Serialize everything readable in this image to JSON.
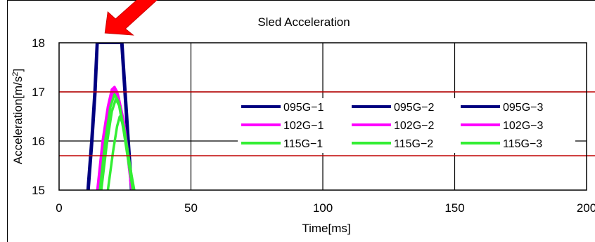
{
  "chart_data": {
    "type": "line",
    "title": "Sled Acceleration",
    "xlabel": "Time[ms]",
    "ylabel_main": "Acceleration[m/s",
    "ylabel_sup": "2",
    "ylabel_end": "]",
    "xlim": [
      0,
      200
    ],
    "ylim": [
      15,
      18
    ],
    "x_ticks": [
      "0",
      "50",
      "100",
      "150",
      "200"
    ],
    "y_ticks": [
      "15",
      "16",
      "17",
      "18"
    ],
    "grid": true,
    "reference_lines": [
      17.0,
      15.7
    ],
    "reference_color": "#c00000",
    "annotation": {
      "type": "arrow",
      "color": "#ff0000",
      "points_to": {
        "x": 19,
        "y": 18
      }
    },
    "legend_placement": "center-right",
    "legend_columns": 3,
    "series": [
      {
        "name": "095G−1",
        "color": "#000080",
        "x": [
          10.8,
          12.2,
          13.4,
          14.3,
          23.6,
          24.8,
          26.0,
          27.3
        ],
        "y": [
          15.0,
          16.0,
          17.0,
          18.0,
          18.0,
          17.0,
          16.0,
          15.0
        ]
      },
      {
        "name": "095G−2",
        "color": "#000080",
        "x": [
          11.0,
          12.4,
          13.6,
          14.5,
          23.8,
          25.0,
          26.2,
          27.5
        ],
        "y": [
          15.0,
          16.0,
          17.0,
          18.0,
          18.0,
          17.0,
          16.0,
          15.0
        ]
      },
      {
        "name": "095G−3",
        "color": "#000080",
        "x": [
          11.2,
          12.6,
          13.8,
          14.6,
          24.0,
          25.2,
          26.4,
          27.7
        ],
        "y": [
          15.0,
          16.0,
          17.0,
          18.0,
          18.0,
          17.0,
          16.0,
          15.0
        ]
      },
      {
        "name": "102G−1",
        "color": "#ff00ff",
        "x": [
          14.5,
          16.5,
          18.5,
          20.0,
          21.0,
          22.0,
          24.0,
          26.0,
          27.5
        ],
        "y": [
          15.0,
          16.0,
          16.7,
          17.05,
          17.1,
          17.0,
          16.5,
          15.7,
          15.0
        ]
      },
      {
        "name": "102G−2",
        "color": "#ff00ff",
        "x": [
          14.8,
          16.8,
          18.8,
          20.3,
          21.3,
          22.3,
          24.3,
          26.3,
          27.7
        ],
        "y": [
          15.0,
          16.0,
          16.7,
          17.0,
          17.05,
          16.95,
          16.45,
          15.65,
          15.0
        ]
      },
      {
        "name": "102G−3",
        "color": "#ff00ff",
        "x": [
          15.0,
          17.0,
          19.0,
          20.5,
          21.5,
          22.5,
          24.5,
          26.5,
          28.0
        ],
        "y": [
          15.0,
          16.0,
          16.65,
          16.95,
          17.0,
          16.9,
          16.4,
          15.6,
          15.0
        ]
      },
      {
        "name": "115G−1",
        "color": "#33ee33",
        "x": [
          15.5,
          17.5,
          19.5,
          21.0,
          22.5,
          24.5,
          26.5,
          28.0
        ],
        "y": [
          15.0,
          16.0,
          16.7,
          16.95,
          16.8,
          16.2,
          15.5,
          15.0
        ]
      },
      {
        "name": "115G−2",
        "color": "#33ee33",
        "x": [
          16.0,
          18.0,
          20.0,
          21.5,
          23.0,
          25.0,
          27.0,
          28.3
        ],
        "y": [
          15.0,
          15.9,
          16.6,
          16.85,
          16.7,
          16.1,
          15.4,
          15.0
        ]
      },
      {
        "name": "115G−3",
        "color": "#33ee33",
        "x": [
          18.5,
          20.5,
          22.0,
          23.0,
          24.5,
          26.0,
          27.5,
          28.5
        ],
        "y": [
          15.0,
          15.8,
          16.3,
          16.5,
          16.3,
          15.8,
          15.3,
          15.0
        ]
      }
    ]
  }
}
